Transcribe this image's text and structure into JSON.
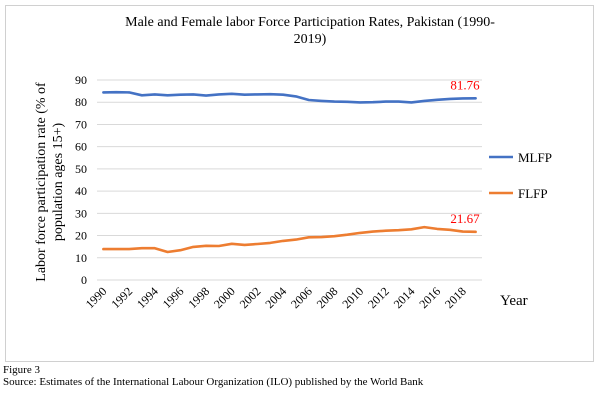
{
  "chart_data": {
    "type": "line",
    "title_lines": [
      "Male and Female labor Force Participation  Rates, Pakistan (1990-",
      "2019)"
    ],
    "ylabel_lines": [
      "Labor force participation  rate (% of",
      "population  ages 15+)"
    ],
    "xlabel": "Year",
    "ylim": [
      0,
      90
    ],
    "y_ticks": [
      0,
      10,
      20,
      30,
      40,
      50,
      60,
      70,
      80,
      90
    ],
    "x": [
      1990,
      1991,
      1992,
      1993,
      1994,
      1995,
      1996,
      1997,
      1998,
      1999,
      2000,
      2001,
      2002,
      2003,
      2004,
      2005,
      2006,
      2007,
      2008,
      2009,
      2010,
      2011,
      2012,
      2013,
      2014,
      2015,
      2016,
      2017,
      2018,
      2019
    ],
    "x_tick_labels": [
      "1990",
      "1992",
      "1994",
      "1996",
      "1998",
      "2000",
      "2002",
      "2004",
      "2006",
      "2008",
      "2010",
      "2012",
      "2014",
      "2016",
      "2018"
    ],
    "grid": true,
    "legend_position": "right",
    "series": [
      {
        "name": "MLFP",
        "color": "#4472C4",
        "end_label": "81.76",
        "end_label_color": "#FF0000",
        "values": [
          84.4,
          84.5,
          84.4,
          83.1,
          83.5,
          83.1,
          83.4,
          83.5,
          83.0,
          83.5,
          83.8,
          83.4,
          83.5,
          83.6,
          83.4,
          82.6,
          81.0,
          80.6,
          80.3,
          80.2,
          79.9,
          80.0,
          80.3,
          80.3,
          79.9,
          80.6,
          81.1,
          81.5,
          81.7,
          81.76
        ]
      },
      {
        "name": "FLFP",
        "color": "#ED7D31",
        "end_label": "21.67",
        "end_label_color": "#FF0000",
        "values": [
          13.9,
          13.9,
          13.9,
          14.3,
          14.3,
          12.6,
          13.4,
          14.9,
          15.4,
          15.3,
          16.3,
          15.8,
          16.2,
          16.7,
          17.6,
          18.2,
          19.2,
          19.3,
          19.7,
          20.4,
          21.2,
          21.8,
          22.2,
          22.4,
          22.8,
          23.8,
          23.0,
          22.6,
          21.8,
          21.67
        ]
      }
    ]
  },
  "figure_label": "Figure 3",
  "figure_source": "Source: Estimates of the International Labour Organization (ILO) published by the World Bank"
}
